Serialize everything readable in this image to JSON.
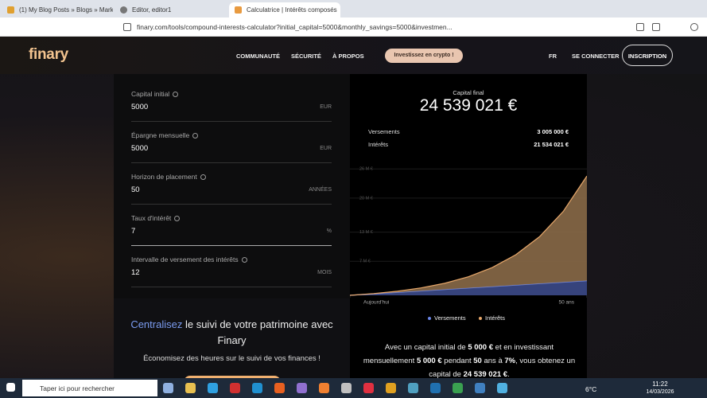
{
  "browser": {
    "tabs": [
      "(1) My Blog Posts » Blogs » Marketh",
      "Editor, editor1",
      "Calculatrice | Intérêts composés"
    ],
    "url": "finary.com/tools/compound-interests-calculator?initial_capital=5000&monthly_savings=5000&investmen..."
  },
  "nav": {
    "logo": "finary",
    "links": [
      "COMMUNAUTÉ",
      "SÉCURITÉ",
      "À PROPOS"
    ],
    "cta": "Investissez en crypto !",
    "lang": "FR",
    "login": "SE CONNECTER",
    "signup": "INSCRIPTION"
  },
  "form": {
    "fields": [
      {
        "label": "Capital initial",
        "value": "5000",
        "unit": "EUR"
      },
      {
        "label": "Épargne mensuelle",
        "value": "5000",
        "unit": "EUR"
      },
      {
        "label": "Horizon de placement",
        "value": "50",
        "unit": "ANNÉES"
      },
      {
        "label": "Taux d'intérêt",
        "value": "7",
        "unit": "%"
      },
      {
        "label": "Intervalle de versement des intérêts",
        "value": "12",
        "unit": "MOIS"
      }
    ]
  },
  "results": {
    "final_label": "Capital final",
    "final_value": "24 539 021 €",
    "rows": [
      {
        "label": "Versements",
        "value": "3 005 000 €"
      },
      {
        "label": "Intérêts",
        "value": "21 534 021 €"
      }
    ]
  },
  "chart_data": {
    "type": "area",
    "stacked": true,
    "x": [
      0,
      5,
      10,
      15,
      20,
      25,
      30,
      35,
      40,
      45,
      50
    ],
    "xlim": [
      0,
      50
    ],
    "xticks": [
      {
        "value": 0,
        "label": "Aujourd'hui"
      },
      {
        "value": 50,
        "label": "50 ans"
      }
    ],
    "ylim": [
      0,
      28000000
    ],
    "yticks": [
      {
        "value": 7000000,
        "label": "7 M €"
      },
      {
        "value": 13000000,
        "label": "13 M €"
      },
      {
        "value": 20000000,
        "label": "20 M €"
      },
      {
        "value": 26000000,
        "label": "26 M €"
      }
    ],
    "series": [
      {
        "name": "Versements",
        "color": "#6b86e8",
        "values": [
          5000,
          305000,
          605000,
          905000,
          1205000,
          1505000,
          1805000,
          2105000,
          2405000,
          2705000,
          3005000
        ]
      },
      {
        "name": "Intérêts",
        "color": "#e8a86b",
        "values": [
          0,
          47000,
          234000,
          617000,
          1274000,
          2317000,
          3901000,
          6243000,
          9648000,
          14545000,
          21534021
        ]
      }
    ]
  },
  "promo": {
    "highlight": "Centralisez",
    "title": "le suivi de votre patrimoine avec Finary",
    "subtitle": "Économisez des heures sur le suivi de vos finances !"
  },
  "summary": {
    "parts": [
      {
        "text": "Avec un capital initial de ",
        "bold": false
      },
      {
        "text": "5 000 €",
        "bold": true
      },
      {
        "text": " et en investissant mensuellement ",
        "bold": false
      },
      {
        "text": "5 000 €",
        "bold": true
      },
      {
        "text": " pendant ",
        "bold": false
      },
      {
        "text": "50",
        "bold": true
      },
      {
        "text": " ans à ",
        "bold": false
      },
      {
        "text": "7%",
        "bold": true
      },
      {
        "text": ", vous obtenez un capital de ",
        "bold": false
      },
      {
        "text": "24 539 021 €",
        "bold": true
      },
      {
        "text": ".",
        "bold": false
      }
    ]
  },
  "taskbar": {
    "search": "Taper ici pour rechercher",
    "weather": "6°C",
    "time": "11:22",
    "date": "14/03/2026"
  }
}
